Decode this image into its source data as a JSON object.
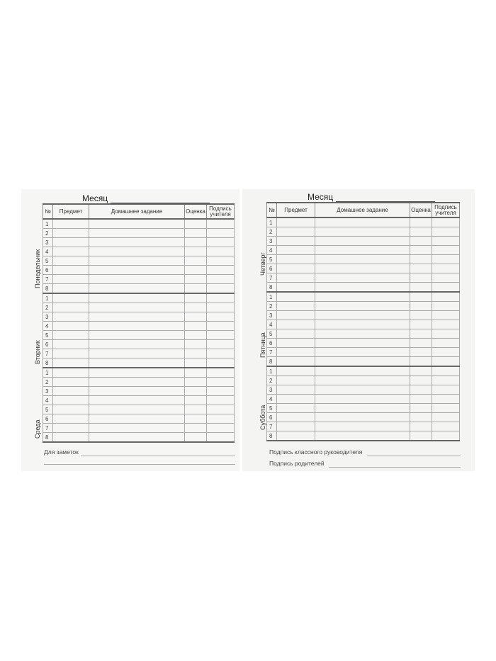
{
  "columns": {
    "num": "№",
    "subject": "Предмет",
    "homework": "Домашнее задание",
    "grade": "Оценка",
    "signature_l1": "Подпись",
    "signature_l2": "учителя"
  },
  "month_label": "Месяц",
  "lessons": [
    "1",
    "2",
    "3",
    "4",
    "5",
    "6",
    "7",
    "8"
  ],
  "left_page": {
    "days": [
      "Понедельник",
      "Вторник",
      "Среда"
    ],
    "notes_label": "Для заметок"
  },
  "right_page": {
    "days": [
      "Четверг",
      "Пятница",
      "Суббота"
    ],
    "class_teacher_signature": "Подпись классного руководителя",
    "parents_signature": "Подпись родителей"
  }
}
